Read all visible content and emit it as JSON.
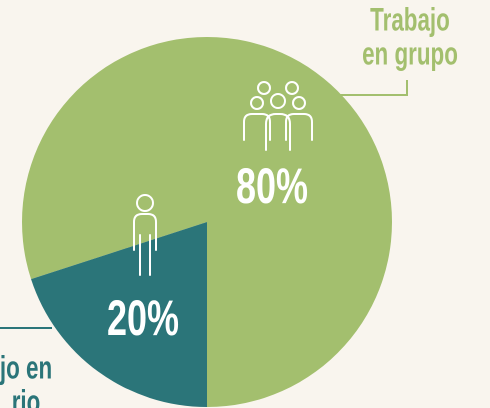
{
  "chart_data": {
    "type": "pie",
    "categories": [
      [
        "Trabajo",
        "en grupo"
      ],
      [
        "jo en",
        "rio"
      ]
    ],
    "values": [
      80,
      20
    ],
    "value_labels": [
      "80%",
      "20%"
    ],
    "colors": [
      "#a3bf6e",
      "#2b7579"
    ]
  }
}
